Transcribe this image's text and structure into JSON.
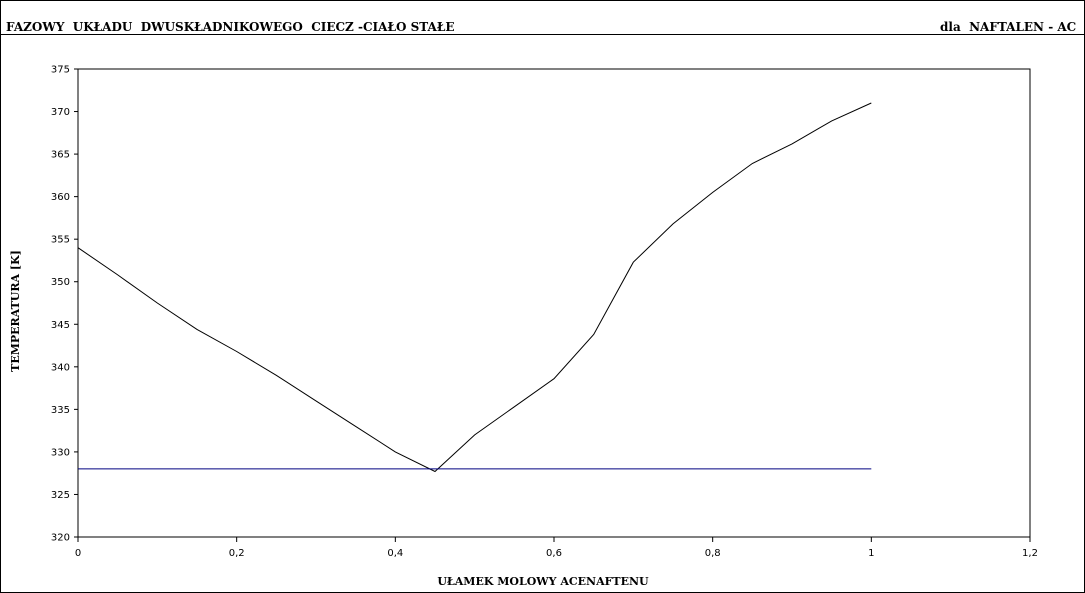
{
  "header": {
    "left_title": "FAZOWY  UKŁADU  DWUSKŁADNIKOWEGO  CIECZ -CIAŁO STAŁE",
    "right_title": "dla  NAFTALEN - AC"
  },
  "chart_data": {
    "type": "line",
    "xlabel": "UŁAMEK MOLOWY ACENAFTENU",
    "ylabel": "TEMPERATURA  [K]",
    "xlim": [
      0,
      1.2
    ],
    "ylim": [
      320,
      375
    ],
    "x_ticks": [
      "0",
      "0,2",
      "0,4",
      "0,6",
      "0,8",
      "1",
      "1,2"
    ],
    "y_ticks": [
      "320",
      "325",
      "330",
      "335",
      "340",
      "345",
      "350",
      "355",
      "360",
      "365",
      "370",
      "375"
    ],
    "grid": false,
    "legend": "none",
    "series": [
      {
        "color": "#000000",
        "x": [
          0,
          0.05,
          0.1,
          0.15,
          0.2,
          0.25,
          0.3,
          0.35,
          0.4,
          0.45,
          0.5,
          0.55,
          0.6,
          0.65,
          0.7,
          0.75,
          0.8,
          0.85,
          0.9,
          0.95,
          1.0
        ],
        "y": [
          354.0,
          350.8,
          347.5,
          344.4,
          341.8,
          339.0,
          336.0,
          333.0,
          330.0,
          327.7,
          332.0,
          335.3,
          338.6,
          343.8,
          352.3,
          356.8,
          360.5,
          363.9,
          366.2,
          368.9,
          371.0
        ]
      },
      {
        "color": "#000080",
        "x": [
          0,
          1.0
        ],
        "y": [
          328.0,
          328.0
        ]
      }
    ]
  }
}
